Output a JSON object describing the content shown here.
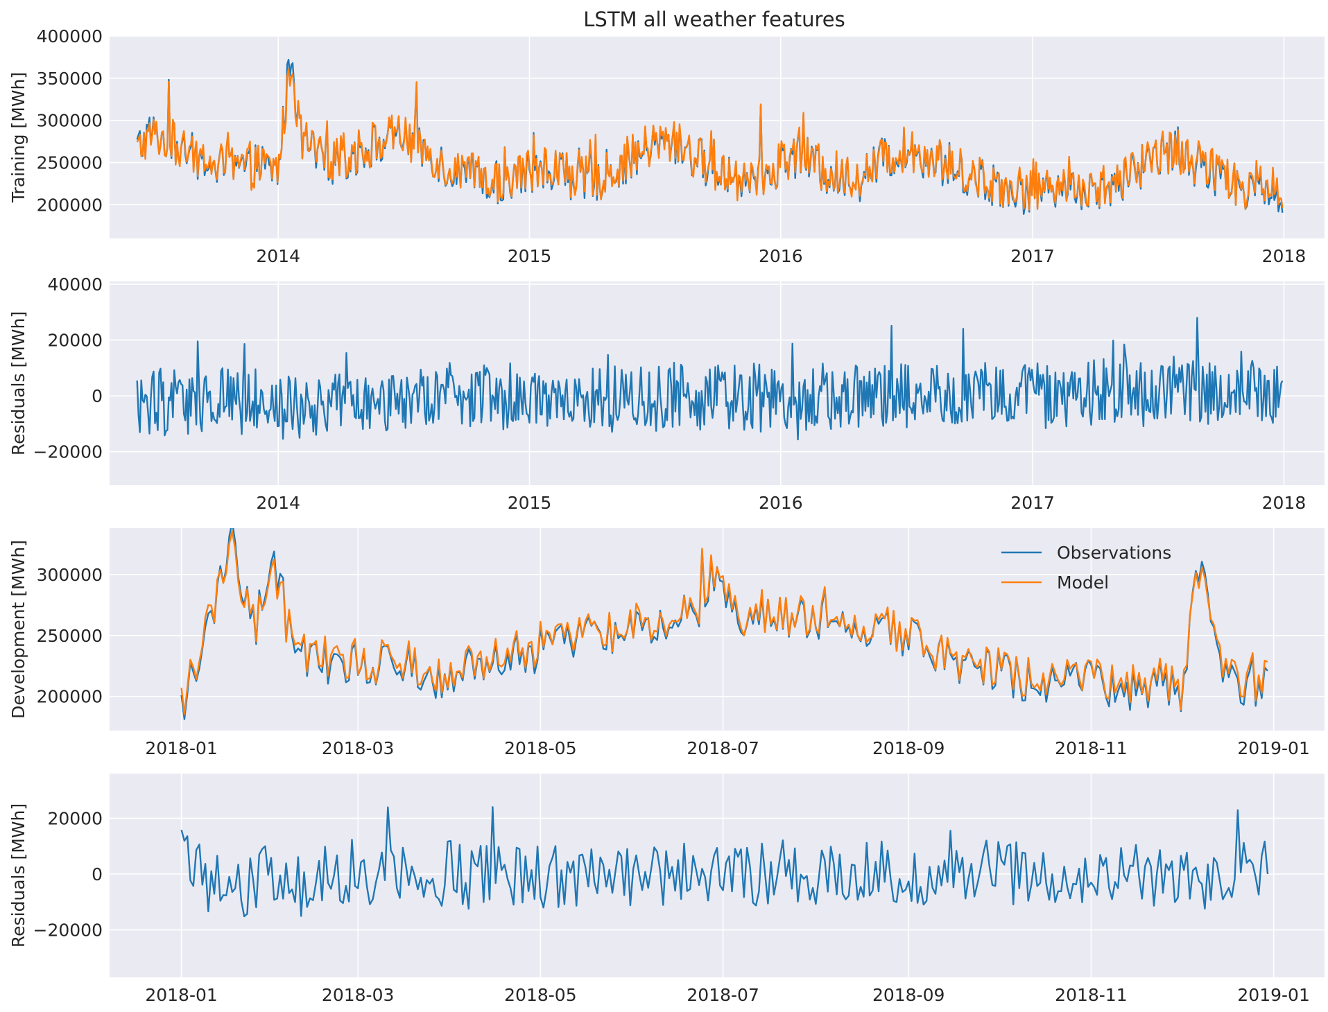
{
  "figure": {
    "title": "LSTM all weather features",
    "colors": {
      "observations": "#1f77b4",
      "model": "#ff7f0e",
      "background": "#eaeaf2",
      "grid": "#ffffff"
    }
  },
  "chart_data": [
    {
      "type": "line",
      "ylabel": "Training [MWh]",
      "xlim": [
        "2013-05-01",
        "2018-03-01"
      ],
      "ylim": [
        160000,
        400000
      ],
      "xticks": [
        "2014",
        "2015",
        "2016",
        "2017",
        "2018"
      ],
      "yticks": [
        "200000",
        "250000",
        "300000",
        "350000",
        "400000"
      ],
      "series": [
        {
          "color": "#1f77b4",
          "x": [
            "2013-06-10",
            "2013-07-01",
            "2013-08-01",
            "2013-09-01",
            "2013-10-01",
            "2013-11-01",
            "2013-12-01",
            "2014-01-01",
            "2014-01-20",
            "2014-02-01",
            "2014-03-01",
            "2014-04-01",
            "2014-05-01",
            "2014-06-01",
            "2014-07-01",
            "2014-08-01",
            "2014-09-01",
            "2014-10-01",
            "2014-11-01",
            "2014-12-01",
            "2015-01-01",
            "2015-02-01",
            "2015-03-01",
            "2015-04-01",
            "2015-05-01",
            "2015-06-01",
            "2015-07-01",
            "2015-08-01",
            "2015-09-01",
            "2015-10-01",
            "2015-11-01",
            "2015-12-01",
            "2016-01-01",
            "2016-02-01",
            "2016-03-01",
            "2016-04-01",
            "2016-05-01",
            "2016-06-01",
            "2016-07-01",
            "2016-08-01",
            "2016-09-01",
            "2016-10-01",
            "2016-11-01",
            "2016-12-01",
            "2017-01-01",
            "2017-02-01",
            "2017-03-01",
            "2017-04-01",
            "2017-05-01",
            "2017-06-01",
            "2017-07-01",
            "2017-08-01",
            "2017-09-01",
            "2017-10-01",
            "2017-11-01",
            "2017-12-01",
            "2017-12-31"
          ],
          "y": [
            265000,
            285000,
            270000,
            255000,
            245000,
            240000,
            245000,
            240000,
            385000,
            280000,
            255000,
            250000,
            265000,
            275000,
            280000,
            265000,
            245000,
            235000,
            225000,
            230000,
            240000,
            245000,
            235000,
            225000,
            240000,
            255000,
            270000,
            275000,
            255000,
            240000,
            230000,
            230000,
            250000,
            265000,
            240000,
            230000,
            235000,
            255000,
            265000,
            260000,
            245000,
            235000,
            225000,
            220000,
            215000,
            225000,
            225000,
            215000,
            220000,
            245000,
            260000,
            265000,
            245000,
            235000,
            220000,
            225000,
            215000
          ]
        },
        {
          "color": "#ff7f0e",
          "x": [
            "2013-06-10",
            "2013-07-01",
            "2013-08-01",
            "2013-09-01",
            "2013-10-01",
            "2013-11-01",
            "2013-12-01",
            "2014-01-01",
            "2014-01-20",
            "2014-02-01",
            "2014-03-01",
            "2014-04-01",
            "2014-05-01",
            "2014-06-01",
            "2014-07-01",
            "2014-08-01",
            "2014-09-01",
            "2014-10-01",
            "2014-11-01",
            "2014-12-01",
            "2015-01-01",
            "2015-02-01",
            "2015-03-01",
            "2015-04-01",
            "2015-05-01",
            "2015-06-01",
            "2015-07-01",
            "2015-08-01",
            "2015-09-01",
            "2015-10-01",
            "2015-11-01",
            "2015-12-01",
            "2016-01-01",
            "2016-02-01",
            "2016-03-01",
            "2016-04-01",
            "2016-05-01",
            "2016-06-01",
            "2016-07-01",
            "2016-08-01",
            "2016-09-01",
            "2016-10-01",
            "2016-11-01",
            "2016-12-01",
            "2017-01-01",
            "2017-02-01",
            "2017-03-01",
            "2017-04-01",
            "2017-05-01",
            "2017-06-01",
            "2017-07-01",
            "2017-08-01",
            "2017-09-01",
            "2017-10-01",
            "2017-11-01",
            "2017-12-01",
            "2017-12-31"
          ],
          "y": [
            262000,
            283000,
            272000,
            257000,
            247000,
            242000,
            247000,
            243000,
            372000,
            282000,
            257000,
            252000,
            267000,
            277000,
            281000,
            266000,
            247000,
            237000,
            227000,
            232000,
            242000,
            247000,
            237000,
            228000,
            242000,
            257000,
            271000,
            276000,
            257000,
            242000,
            232000,
            232000,
            252000,
            266000,
            242000,
            232000,
            237000,
            256000,
            266000,
            261000,
            247000,
            237000,
            227000,
            223000,
            218000,
            227000,
            227000,
            218000,
            222000,
            247000,
            261000,
            266000,
            247000,
            237000,
            222000,
            227000,
            220000
          ]
        }
      ]
    },
    {
      "type": "line",
      "ylabel": "Residuals [MWh]",
      "xlim": [
        "2013-05-01",
        "2018-03-01"
      ],
      "ylim": [
        -32000,
        41000
      ],
      "xticks": [
        "2014",
        "2015",
        "2016",
        "2017",
        "2018"
      ],
      "yticks": [
        "−20000",
        "0",
        "20000",
        "40000"
      ],
      "series": [
        {
          "color": "#1f77b4",
          "x": [
            "2013-06-10",
            "2013-07-01",
            "2013-08-01",
            "2013-09-01",
            "2013-10-01",
            "2013-11-01",
            "2013-12-01",
            "2014-01-01",
            "2014-02-01",
            "2014-03-01",
            "2014-04-01",
            "2014-05-01",
            "2014-06-01",
            "2014-07-01",
            "2014-08-01",
            "2014-09-01",
            "2014-10-01",
            "2014-11-01",
            "2014-12-01",
            "2015-01-01",
            "2015-02-01",
            "2015-03-01",
            "2015-04-01",
            "2015-05-01",
            "2015-06-01",
            "2015-07-01",
            "2015-08-01",
            "2015-09-01",
            "2015-10-01",
            "2015-11-01",
            "2015-12-01",
            "2016-01-01",
            "2016-02-01",
            "2016-03-01",
            "2016-04-01",
            "2016-05-01",
            "2016-06-01",
            "2016-07-01",
            "2016-08-01",
            "2016-09-01",
            "2016-10-01",
            "2016-11-01",
            "2016-12-01",
            "2017-01-01",
            "2017-02-01",
            "2017-03-01",
            "2017-04-01",
            "2017-05-01",
            "2017-06-01",
            "2017-07-01",
            "2017-08-01",
            "2017-09-01",
            "2017-10-01",
            "2017-11-01",
            "2017-12-01",
            "2017-12-31"
          ],
          "y": [
            0,
            -3000,
            -2000,
            -1000,
            -2000,
            -1500,
            -1000,
            -2000,
            -4000,
            -3000,
            0,
            -2000,
            -1000,
            -1500,
            -2000,
            0,
            -1000,
            0,
            -500,
            1000,
            0,
            -1000,
            0,
            -500,
            -1000,
            0,
            500,
            -500,
            0,
            -1000,
            0,
            -2000,
            -1000,
            1000,
            0,
            -500,
            0,
            1000,
            500,
            1000,
            500,
            2000,
            1000,
            0,
            1000,
            0,
            1000,
            1500,
            2000,
            1000,
            2000,
            1500,
            1000,
            2000,
            1000,
            2000
          ]
        }
      ]
    },
    {
      "type": "line",
      "ylabel": "Development [MWh]",
      "xlim": [
        "2017-12-08",
        "2019-01-18"
      ],
      "ylim": [
        172000,
        338000
      ],
      "xticks": [
        "2018-01",
        "2018-03",
        "2018-05",
        "2018-07",
        "2018-09",
        "2018-11",
        "2019-01"
      ],
      "yticks": [
        "200000",
        "250000",
        "300000"
      ],
      "legend": {
        "placement": "top-right",
        "entries": [
          "Observations",
          "Model"
        ]
      },
      "series": [
        {
          "name": "Observations",
          "color": "#1f77b4",
          "x": [
            "2018-01-01",
            "2018-01-10",
            "2018-01-18",
            "2018-01-25",
            "2018-02-01",
            "2018-02-08",
            "2018-02-15",
            "2018-02-22",
            "2018-03-01",
            "2018-03-08",
            "2018-03-15",
            "2018-03-22",
            "2018-04-01",
            "2018-04-08",
            "2018-04-15",
            "2018-04-22",
            "2018-05-01",
            "2018-05-08",
            "2018-05-15",
            "2018-05-22",
            "2018-06-01",
            "2018-06-08",
            "2018-06-15",
            "2018-06-22",
            "2018-06-28",
            "2018-07-05",
            "2018-07-12",
            "2018-07-19",
            "2018-07-26",
            "2018-08-01",
            "2018-08-08",
            "2018-08-15",
            "2018-08-22",
            "2018-09-01",
            "2018-09-08",
            "2018-09-15",
            "2018-09-22",
            "2018-10-01",
            "2018-10-08",
            "2018-10-15",
            "2018-10-22",
            "2018-11-01",
            "2018-11-08",
            "2018-11-15",
            "2018-11-22",
            "2018-12-01",
            "2018-12-07",
            "2018-12-14",
            "2018-12-21",
            "2018-12-30"
          ],
          "y": [
            192000,
            250000,
            330000,
            255000,
            315000,
            230000,
            235000,
            220000,
            230000,
            225000,
            230000,
            220000,
            215000,
            230000,
            225000,
            230000,
            240000,
            245000,
            255000,
            250000,
            255000,
            260000,
            265000,
            270000,
            300000,
            265000,
            270000,
            262000,
            268000,
            260000,
            262000,
            258000,
            255000,
            250000,
            238000,
            232000,
            228000,
            222000,
            215000,
            208000,
            210000,
            212000,
            208000,
            205000,
            210000,
            205000,
            312000,
            220000,
            205000,
            205000
          ]
        },
        {
          "name": "Model",
          "color": "#ff7f0e",
          "x": [
            "2018-01-01",
            "2018-01-10",
            "2018-01-18",
            "2018-01-25",
            "2018-02-01",
            "2018-02-08",
            "2018-02-15",
            "2018-02-22",
            "2018-03-01",
            "2018-03-08",
            "2018-03-15",
            "2018-03-22",
            "2018-04-01",
            "2018-04-08",
            "2018-04-15",
            "2018-04-22",
            "2018-05-01",
            "2018-05-08",
            "2018-05-15",
            "2018-05-22",
            "2018-06-01",
            "2018-06-08",
            "2018-06-15",
            "2018-06-22",
            "2018-06-28",
            "2018-07-05",
            "2018-07-12",
            "2018-07-19",
            "2018-07-26",
            "2018-08-01",
            "2018-08-08",
            "2018-08-15",
            "2018-08-22",
            "2018-09-01",
            "2018-09-08",
            "2018-09-15",
            "2018-09-22",
            "2018-10-01",
            "2018-10-08",
            "2018-10-15",
            "2018-10-22",
            "2018-11-01",
            "2018-11-08",
            "2018-11-15",
            "2018-11-22",
            "2018-12-01",
            "2018-12-07",
            "2018-12-14",
            "2018-12-21",
            "2018-12-30"
          ],
          "y": [
            198000,
            255000,
            322000,
            258000,
            308000,
            235000,
            238000,
            225000,
            233000,
            228000,
            233000,
            223000,
            218000,
            233000,
            228000,
            233000,
            242000,
            247000,
            257000,
            252000,
            257000,
            262000,
            267000,
            272000,
            302000,
            268000,
            272000,
            264000,
            270000,
            262000,
            264000,
            260000,
            257000,
            252000,
            240000,
            235000,
            230000,
            225000,
            218000,
            212000,
            213000,
            215000,
            211000,
            209000,
            214000,
            209000,
            305000,
            224000,
            209000,
            210000
          ]
        }
      ]
    },
    {
      "type": "line",
      "ylabel": "Residuals [MWh]",
      "xlim": [
        "2017-12-08",
        "2019-01-18"
      ],
      "ylim": [
        -37000,
        36000
      ],
      "xticks": [
        "2018-01",
        "2018-03",
        "2018-05",
        "2018-07",
        "2018-09",
        "2018-11",
        "2019-01"
      ],
      "yticks": [
        "−20000",
        "0",
        "20000"
      ],
      "series": [
        {
          "color": "#1f77b4",
          "x": [
            "2018-01-01",
            "2018-01-10",
            "2018-01-18",
            "2018-01-25",
            "2018-02-01",
            "2018-02-08",
            "2018-02-15",
            "2018-02-22",
            "2018-03-01",
            "2018-03-08",
            "2018-03-15",
            "2018-03-22",
            "2018-04-01",
            "2018-04-08",
            "2018-04-15",
            "2018-04-22",
            "2018-05-01",
            "2018-05-08",
            "2018-05-15",
            "2018-05-22",
            "2018-06-01",
            "2018-06-08",
            "2018-06-15",
            "2018-06-22",
            "2018-06-28",
            "2018-07-05",
            "2018-07-12",
            "2018-07-19",
            "2018-07-26",
            "2018-08-01",
            "2018-08-08",
            "2018-08-15",
            "2018-08-22",
            "2018-09-01",
            "2018-09-08",
            "2018-09-15",
            "2018-09-22",
            "2018-10-01",
            "2018-10-08",
            "2018-10-15",
            "2018-10-22",
            "2018-11-01",
            "2018-11-08",
            "2018-11-15",
            "2018-11-22",
            "2018-12-01",
            "2018-12-07",
            "2018-12-14",
            "2018-12-21",
            "2018-12-30"
          ],
          "y": [
            10000,
            -5000,
            -4000,
            -2000,
            1000,
            -3000,
            -2000,
            -1000,
            0,
            -2000,
            1000,
            -1500,
            0,
            -1000,
            2000,
            -500,
            -1000,
            -1000,
            -1500,
            -500,
            -1000,
            -1000,
            0,
            1000,
            -500,
            2000,
            1000,
            0,
            500,
            -500,
            500,
            0,
            1000,
            0,
            1000,
            500,
            1000,
            500,
            1000,
            500,
            0,
            1000,
            0,
            500,
            0,
            1000,
            -3000,
            1000,
            2000,
            2500
          ]
        }
      ]
    }
  ]
}
